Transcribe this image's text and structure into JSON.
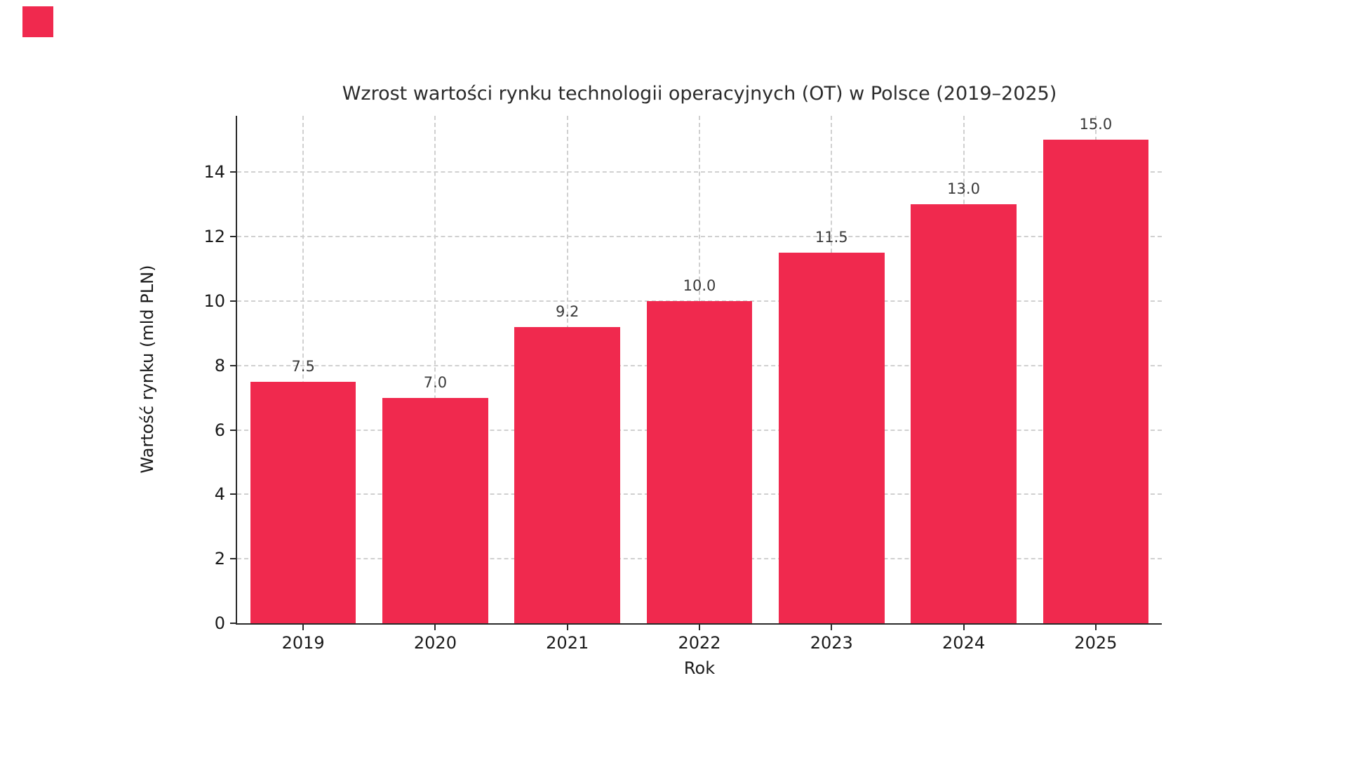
{
  "figure": {
    "background": "#ffffff",
    "corner_marker_color": "#F0294E"
  },
  "chart_data": {
    "type": "bar",
    "title": "Wzrost wartości rynku technologii operacyjnych (OT) w Polsce (2019–2025)",
    "xlabel": "Rok",
    "ylabel": "Wartość rynku (mld PLN)",
    "categories": [
      "2019",
      "2020",
      "2021",
      "2022",
      "2023",
      "2024",
      "2025"
    ],
    "values": [
      7.5,
      7.0,
      9.2,
      10.0,
      11.5,
      13.0,
      15.0
    ],
    "bar_value_labels": [
      "7.5",
      "7.0",
      "9.2",
      "10.0",
      "11.5",
      "13.0",
      "15.0"
    ],
    "yticks": [
      0,
      2,
      4,
      6,
      8,
      10,
      12,
      14
    ],
    "ylim": [
      0,
      15.75
    ],
    "bar_color": "#F0294E",
    "bar_width_fraction": 0.8,
    "grid": true,
    "grid_style": "dashed",
    "grid_color": "#d0d0d0",
    "axis_color": "#2a2a2a",
    "text_color": "#1a1a1a",
    "legend": null
  }
}
